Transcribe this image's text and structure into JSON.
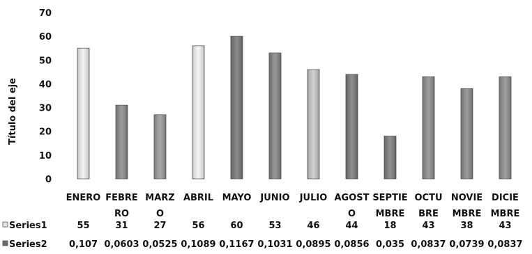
{
  "chart_data": {
    "type": "bar",
    "ylabel": "Título del eje",
    "ylim": [
      0,
      70
    ],
    "yticks": [
      0,
      10,
      20,
      30,
      40,
      50,
      60,
      70
    ],
    "categories": [
      [
        "ENERO"
      ],
      [
        "FEBRE",
        "RO"
      ],
      [
        "MARZ",
        "O"
      ],
      [
        "ABRIL"
      ],
      [
        "MAYO"
      ],
      [
        "JUNIO"
      ],
      [
        "JULIO"
      ],
      [
        "AGOST",
        "O"
      ],
      [
        "SEPTIE",
        "MBRE"
      ],
      [
        "OCTU",
        "BRE"
      ],
      [
        "NOVIE",
        "MBRE"
      ],
      [
        "DICIE",
        "MBRE"
      ]
    ],
    "series": [
      {
        "name": "Series1",
        "values": [
          55,
          31,
          27,
          56,
          60,
          53,
          46,
          44,
          18,
          43,
          38,
          43
        ]
      },
      {
        "name": "Series2",
        "values": [
          "0,107",
          "0,0603",
          "0,0525",
          "0,1089",
          "0,1167",
          "0,1031",
          "0,0895",
          "0,0856",
          "0,035",
          "0,0837",
          "0,0739",
          "0,0837"
        ]
      }
    ],
    "data_table": true,
    "legend": "data-table",
    "bar_colors": [
      "#f1f1f1",
      "#8a8a8a",
      "#9a9a9a",
      "#f4f4f4",
      "#777777",
      "#858585",
      "#c8c8c8",
      "#7a7a7a",
      "#7d7d7d",
      "#8c8c8c",
      "#8a8a8a",
      "#8f8f8f"
    ],
    "series2_color": "#6a6a6a",
    "grid": false
  }
}
